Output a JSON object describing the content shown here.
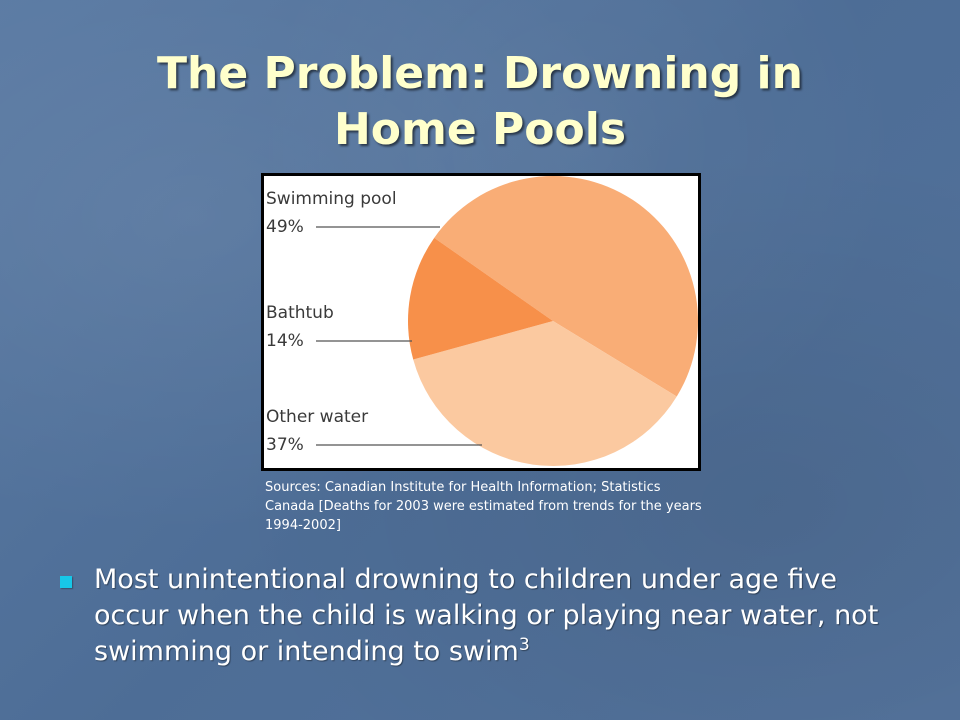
{
  "slide": {
    "title_line1": "The Problem: Drowning in",
    "title_line2": "Home Pools",
    "source_note": "Sources: Canadian Institute for Health Information; Statistics Canada [Deaths for 2003 were estimated from trends for the years 1994-2002]",
    "bullet_text": "Most unintentional drowning to children under age five occur when the child is walking or playing near water, not swimming or intending to swim",
    "bullet_superscript": "3",
    "bullet_color": "#17c7e8",
    "title_color": "#ffffcc"
  },
  "chart_data": {
    "type": "pie",
    "slices": [
      {
        "name": "Swimming pool",
        "label": "49%",
        "value": 49,
        "color": "#f9ad76"
      },
      {
        "name": "Bathtub",
        "label": "14%",
        "value": 14,
        "color": "#f7904a"
      },
      {
        "name": "Other water",
        "label": "37%",
        "value": 37,
        "color": "#fbc9a0"
      }
    ]
  }
}
